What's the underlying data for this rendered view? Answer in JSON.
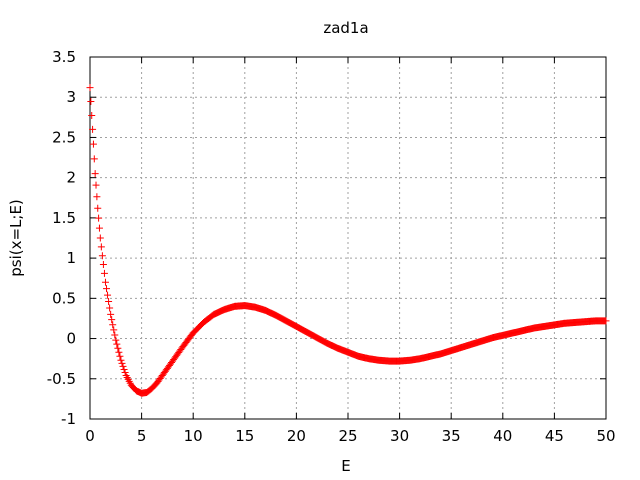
{
  "chart_data": {
    "type": "scatter",
    "title": "zad1a",
    "xlabel": "E",
    "ylabel": "psi(x=L;E)",
    "xlim": [
      0,
      50
    ],
    "ylim": [
      -1,
      3.5
    ],
    "x_ticks": [
      0,
      5,
      10,
      15,
      20,
      25,
      30,
      35,
      40,
      45,
      50
    ],
    "y_ticks": [
      -1,
      -0.5,
      0,
      0.5,
      1,
      1.5,
      2,
      2.5,
      3,
      3.5
    ],
    "x_tick_labels": [
      "0",
      "5",
      "10",
      "15",
      "20",
      "25",
      "30",
      "35",
      "40",
      "45",
      "50"
    ],
    "y_tick_labels": [
      "-1",
      "-0.5",
      "0",
      "0.5",
      "1",
      "1.5",
      "2",
      "2.5",
      "3",
      "3.5"
    ],
    "grid": true,
    "legend": "none",
    "marker": "+",
    "color": "#ff0000",
    "series": [
      {
        "name": "",
        "x": [
          0,
          0.25,
          0.5,
          0.75,
          1,
          1.5,
          2,
          2.5,
          3,
          3.5,
          4,
          4.5,
          5,
          5.5,
          6,
          6.5,
          7,
          7.5,
          8,
          9,
          10,
          11,
          12,
          13,
          14,
          15,
          16,
          17,
          18,
          19,
          20,
          21,
          22,
          23,
          24,
          25,
          26,
          27,
          28,
          29,
          30,
          31,
          32,
          33,
          34,
          35,
          36,
          37,
          38,
          39,
          40,
          41,
          42,
          43,
          44,
          45,
          46,
          47,
          48,
          49,
          50
        ],
        "y": [
          3.12,
          2.6,
          2.05,
          1.62,
          1.25,
          0.7,
          0.3,
          -0.02,
          -0.27,
          -0.46,
          -0.58,
          -0.65,
          -0.68,
          -0.67,
          -0.62,
          -0.55,
          -0.46,
          -0.37,
          -0.28,
          -0.1,
          0.07,
          0.2,
          0.3,
          0.36,
          0.4,
          0.41,
          0.39,
          0.35,
          0.29,
          0.22,
          0.15,
          0.08,
          0.01,
          -0.06,
          -0.12,
          -0.17,
          -0.22,
          -0.25,
          -0.27,
          -0.28,
          -0.28,
          -0.27,
          -0.25,
          -0.22,
          -0.19,
          -0.15,
          -0.11,
          -0.07,
          -0.03,
          0.01,
          0.04,
          0.07,
          0.1,
          0.13,
          0.15,
          0.17,
          0.19,
          0.2,
          0.21,
          0.22,
          0.22
        ]
      }
    ]
  }
}
